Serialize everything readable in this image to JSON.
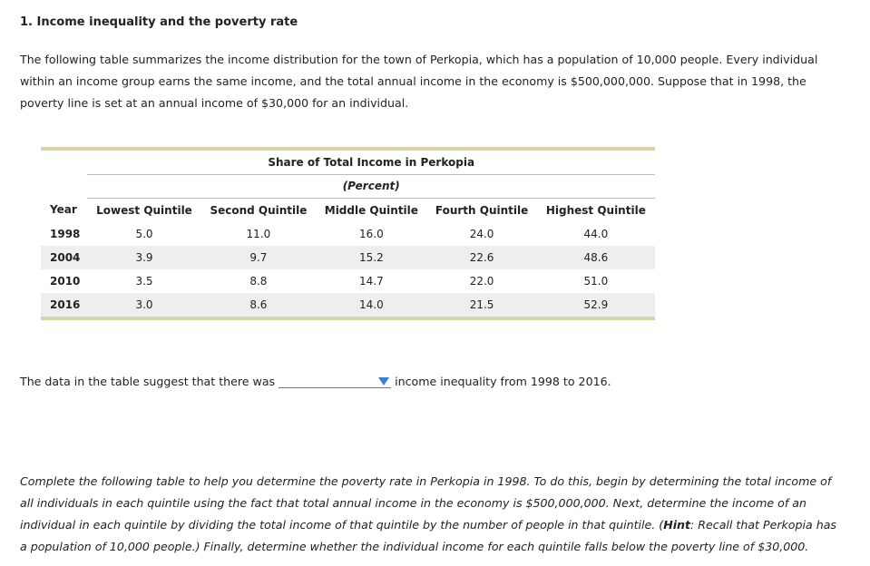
{
  "heading": "1. Income inequality and the poverty rate",
  "intro": "The following table summarizes the income distribution for the town of Perkopia, which has a population of 10,000 people. Every individual within an income group earns the same income, and the total annual income in the economy is $500,000,000. Suppose that in 1998, the poverty line is set at an annual income of $30,000 for an individual.",
  "table": {
    "title": "Share of Total Income in Perkopia",
    "subtitle": "(Percent)",
    "columns": [
      "Year",
      "Lowest Quintile",
      "Second Quintile",
      "Middle Quintile",
      "Fourth Quintile",
      "Highest Quintile"
    ],
    "rows": [
      [
        "1998",
        "5.0",
        "11.0",
        "16.0",
        "24.0",
        "44.0"
      ],
      [
        "2004",
        "3.9",
        "9.7",
        "15.2",
        "22.6",
        "48.6"
      ],
      [
        "2010",
        "3.5",
        "8.8",
        "14.7",
        "22.0",
        "51.0"
      ],
      [
        "2016",
        "3.0",
        "8.6",
        "14.0",
        "21.5",
        "52.9"
      ]
    ]
  },
  "question": {
    "before": "The data in the table suggest that there was",
    "after": "income inequality from 1998 to 2016."
  },
  "instructions": {
    "before": "Complete the following table to help you determine the poverty rate in Perkopia in 1998. To do this, begin by determining the total income of all individuals in each quintile using the fact that total annual income in the economy is $500,000,000. Next, determine the income of an individual in each quintile by dividing the total income of that quintile by the number of people in that quintile. (",
    "hint": "Hint",
    "after": ": Recall that Perkopia has a population of 10,000 people.) Finally, determine whether the individual income for each quintile falls below the poverty line of $30,000."
  }
}
